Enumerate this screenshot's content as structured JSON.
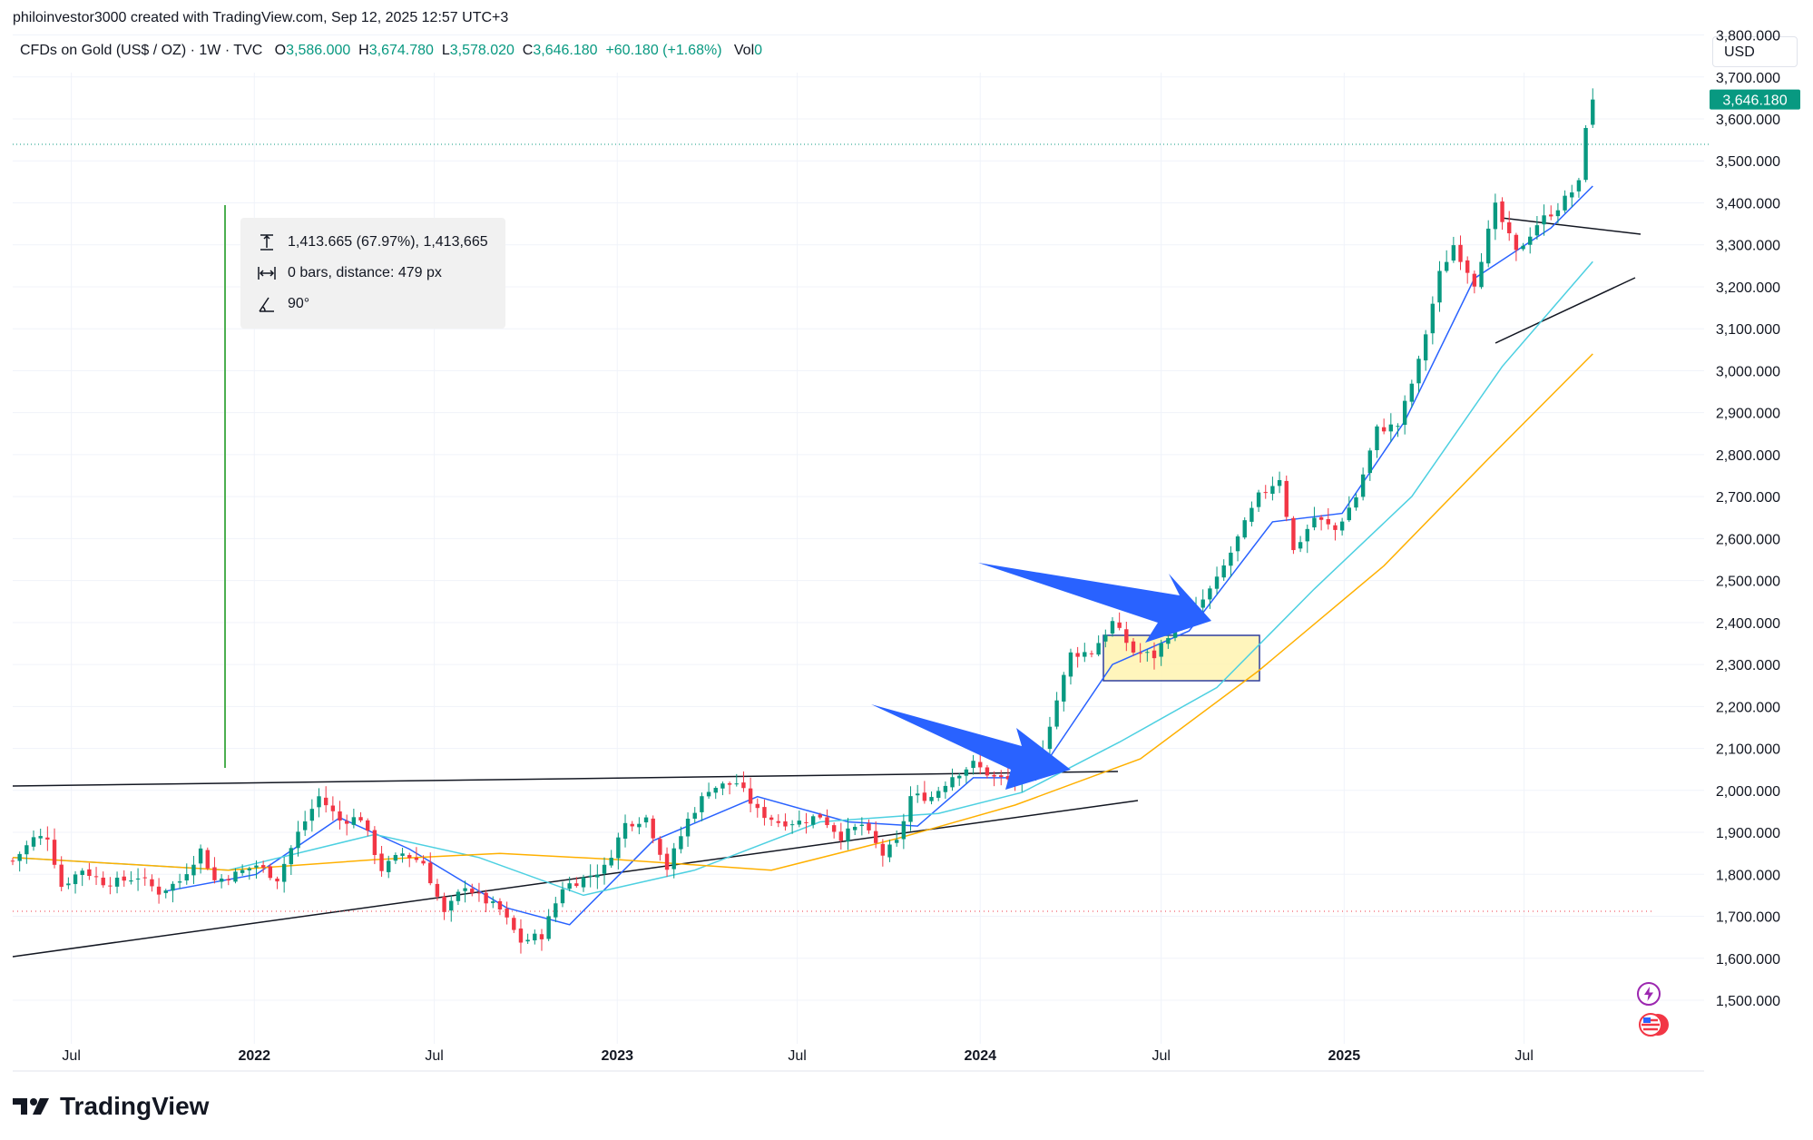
{
  "header": {
    "attribution": "philoinvestor3000 created with TradingView.com, Sep 12, 2025 12:57 UTC+3"
  },
  "symbol_bar": {
    "name": "CFDs on Gold (US$ / OZ) · 1W · TVC",
    "o_label": "O",
    "o_value": "3,586.000",
    "h_label": "H",
    "h_value": "3,674.780",
    "l_label": "L",
    "l_value": "3,578.020",
    "c_label": "C",
    "c_value": "3,646.180",
    "change": "+60.180 (+1.68%)",
    "vol_label": "Vol",
    "vol_value": "0"
  },
  "currency_button": "USD",
  "measure_tooltip": {
    "row1": "1,413.665 (67.97%), 1,413,665",
    "row2": "0 bars, distance: 479 px",
    "row3": "90°",
    "icon1": "price-range-icon",
    "icon2": "bar-range-icon",
    "icon3": "angle-icon"
  },
  "last_price_label": "3,646.180",
  "footer": {
    "brand": "TradingView",
    "logo_icon": "tradingview-logo-icon"
  },
  "event_icons": {
    "first": "lightning-icon",
    "second": "us-flag-icon"
  },
  "colors": {
    "up": "#089981",
    "down": "#f23645",
    "ma_fast": "#2962ff",
    "ma_mid": "#4dd0e1",
    "ma_slow": "#ffb000",
    "arrow": "#2962ff",
    "measure_line": "#4caf50",
    "box_fill": "#fff3b0",
    "box_border": "#2f3e9e"
  },
  "chart_data": {
    "type": "candlestick",
    "title": "",
    "xlabel": "",
    "ylabel": "",
    "ylim": [
      1400,
      3900
    ],
    "x_range": [
      "2021-05-03",
      "2025-12-29"
    ],
    "y_ticks": [
      {
        "value": 1500,
        "label": "1,500.000"
      },
      {
        "value": 1600,
        "label": "1,600.000"
      },
      {
        "value": 1700,
        "label": "1,700.000"
      },
      {
        "value": 1800,
        "label": "1,800.000"
      },
      {
        "value": 1900,
        "label": "1,900.000"
      },
      {
        "value": 2000,
        "label": "2,000.000"
      },
      {
        "value": 2100,
        "label": "2,100.000"
      },
      {
        "value": 2200,
        "label": "2,200.000"
      },
      {
        "value": 2300,
        "label": "2,300.000"
      },
      {
        "value": 2400,
        "label": "2,400.000"
      },
      {
        "value": 2500,
        "label": "2,500.000"
      },
      {
        "value": 2600,
        "label": "2,600.000"
      },
      {
        "value": 2700,
        "label": "2,700.000"
      },
      {
        "value": 2800,
        "label": "2,800.000"
      },
      {
        "value": 2900,
        "label": "2,900.000"
      },
      {
        "value": 3000,
        "label": "3,000.000"
      },
      {
        "value": 3100,
        "label": "3,100.000"
      },
      {
        "value": 3200,
        "label": "3,200.000"
      },
      {
        "value": 3300,
        "label": "3,300.000"
      },
      {
        "value": 3400,
        "label": "3,400.000"
      },
      {
        "value": 3500,
        "label": "3,500.000"
      },
      {
        "value": 3600,
        "label": "3,600.000"
      },
      {
        "value": 3700,
        "label": "3,700.000"
      },
      {
        "value": 3800,
        "label": "3,800.000"
      }
    ],
    "x_ticks": [
      {
        "date": "2021-07-01",
        "label": "Jul",
        "bold": false
      },
      {
        "date": "2022-01-01",
        "label": "2022",
        "bold": true
      },
      {
        "date": "2022-07-01",
        "label": "Jul",
        "bold": false
      },
      {
        "date": "2023-01-01",
        "label": "2023",
        "bold": true
      },
      {
        "date": "2023-07-01",
        "label": "Jul",
        "bold": false
      },
      {
        "date": "2024-01-01",
        "label": "2024",
        "bold": true
      },
      {
        "date": "2024-07-01",
        "label": "Jul",
        "bold": false
      },
      {
        "date": "2025-01-01",
        "label": "2025",
        "bold": true
      },
      {
        "date": "2025-07-01",
        "label": "Jul",
        "bold": false
      }
    ],
    "last_price": 3646.18,
    "close_path": [
      [
        "2021-05-03",
        1832
      ],
      [
        "2021-05-24",
        1885
      ],
      [
        "2021-06-07",
        1890
      ],
      [
        "2021-06-21",
        1772
      ],
      [
        "2021-07-12",
        1812
      ],
      [
        "2021-08-02",
        1782
      ],
      [
        "2021-08-16",
        1782
      ],
      [
        "2021-09-06",
        1795
      ],
      [
        "2021-09-27",
        1758
      ],
      [
        "2021-10-18",
        1784
      ],
      [
        "2021-11-08",
        1858
      ],
      [
        "2021-11-22",
        1785
      ],
      [
        "2021-12-13",
        1800
      ],
      [
        "2022-01-03",
        1822
      ],
      [
        "2022-01-24",
        1790
      ],
      [
        "2022-02-14",
        1898
      ],
      [
        "2022-03-07",
        1985
      ],
      [
        "2022-03-28",
        1928
      ],
      [
        "2022-04-18",
        1935
      ],
      [
        "2022-05-09",
        1812
      ],
      [
        "2022-05-30",
        1850
      ],
      [
        "2022-06-20",
        1828
      ],
      [
        "2022-07-11",
        1705
      ],
      [
        "2022-08-01",
        1775
      ],
      [
        "2022-08-15",
        1746
      ],
      [
        "2022-09-05",
        1715
      ],
      [
        "2022-09-26",
        1640
      ],
      [
        "2022-10-17",
        1655
      ],
      [
        "2022-11-07",
        1770
      ],
      [
        "2022-11-28",
        1790
      ],
      [
        "2022-12-19",
        1815
      ],
      [
        "2023-01-09",
        1920
      ],
      [
        "2023-01-30",
        1935
      ],
      [
        "2023-02-20",
        1815
      ],
      [
        "2023-03-13",
        1930
      ],
      [
        "2023-04-03",
        2005
      ],
      [
        "2023-05-01",
        2018
      ],
      [
        "2023-05-22",
        1950
      ],
      [
        "2023-06-12",
        1925
      ],
      [
        "2023-07-03",
        1925
      ],
      [
        "2023-07-24",
        1940
      ],
      [
        "2023-08-14",
        1890
      ],
      [
        "2023-09-04",
        1918
      ],
      [
        "2023-09-25",
        1847
      ],
      [
        "2023-10-09",
        1875
      ],
      [
        "2023-10-23",
        1985
      ],
      [
        "2023-11-13",
        1985
      ],
      [
        "2023-12-04",
        2035
      ],
      [
        "2023-12-25",
        2063
      ],
      [
        "2024-01-15",
        2030
      ],
      [
        "2024-02-05",
        2022
      ],
      [
        "2024-02-26",
        2050
      ],
      [
        "2024-03-11",
        2160
      ],
      [
        "2024-04-01",
        2325
      ],
      [
        "2024-04-22",
        2330
      ],
      [
        "2024-05-13",
        2400
      ],
      [
        "2024-06-03",
        2330
      ],
      [
        "2024-06-24",
        2320
      ],
      [
        "2024-07-15",
        2400
      ],
      [
        "2024-08-05",
        2430
      ],
      [
        "2024-08-26",
        2500
      ],
      [
        "2024-09-16",
        2600
      ],
      [
        "2024-10-07",
        2700
      ],
      [
        "2024-10-28",
        2745
      ],
      [
        "2024-11-11",
        2570
      ],
      [
        "2024-12-02",
        2650
      ],
      [
        "2024-12-23",
        2620
      ],
      [
        "2025-01-13",
        2700
      ],
      [
        "2025-02-03",
        2860
      ],
      [
        "2025-02-24",
        2870
      ],
      [
        "2025-03-17",
        3020
      ],
      [
        "2025-04-07",
        3230
      ],
      [
        "2025-04-21",
        3300
      ],
      [
        "2025-05-12",
        3210
      ],
      [
        "2025-06-02",
        3390
      ],
      [
        "2025-06-23",
        3280
      ],
      [
        "2025-07-14",
        3350
      ],
      [
        "2025-08-04",
        3390
      ],
      [
        "2025-08-25",
        3445
      ],
      [
        "2025-09-01",
        3586
      ],
      [
        "2025-09-08",
        3646.18
      ]
    ],
    "series": [
      {
        "name": "",
        "kind": "ma",
        "color": "#2962ff",
        "points": [
          [
            "2021-10-04",
            1760
          ],
          [
            "2022-01-03",
            1800
          ],
          [
            "2022-03-28",
            1935
          ],
          [
            "2022-06-06",
            1860
          ],
          [
            "2022-09-12",
            1720
          ],
          [
            "2022-11-14",
            1680
          ],
          [
            "2023-02-06",
            1880
          ],
          [
            "2023-05-22",
            1985
          ],
          [
            "2023-08-21",
            1925
          ],
          [
            "2023-10-30",
            1915
          ],
          [
            "2023-12-25",
            2030
          ],
          [
            "2024-02-26",
            2030
          ],
          [
            "2024-05-13",
            2300
          ],
          [
            "2024-07-29",
            2380
          ],
          [
            "2024-10-21",
            2640
          ],
          [
            "2024-12-30",
            2660
          ],
          [
            "2025-03-03",
            2880
          ],
          [
            "2025-05-12",
            3220
          ],
          [
            "2025-07-28",
            3340
          ],
          [
            "2025-09-08",
            3440
          ]
        ]
      },
      {
        "name": "",
        "kind": "ma",
        "color": "#4dd0e1",
        "points": [
          [
            "2021-05-03",
            1840
          ],
          [
            "2021-12-06",
            1810
          ],
          [
            "2022-05-02",
            1895
          ],
          [
            "2022-08-15",
            1840
          ],
          [
            "2022-11-28",
            1750
          ],
          [
            "2023-03-20",
            1810
          ],
          [
            "2023-07-24",
            1925
          ],
          [
            "2023-11-20",
            1945
          ],
          [
            "2024-02-12",
            1995
          ],
          [
            "2024-05-20",
            2115
          ],
          [
            "2024-08-26",
            2245
          ],
          [
            "2024-12-02",
            2480
          ],
          [
            "2025-03-10",
            2700
          ],
          [
            "2025-06-09",
            3010
          ],
          [
            "2025-09-08",
            3260
          ]
        ]
      },
      {
        "name": "",
        "kind": "ma",
        "color": "#ffb000",
        "points": [
          [
            "2021-05-03",
            1840
          ],
          [
            "2021-12-06",
            1810
          ],
          [
            "2022-05-02",
            1835
          ],
          [
            "2022-09-05",
            1850
          ],
          [
            "2023-01-02",
            1835
          ],
          [
            "2023-06-05",
            1810
          ],
          [
            "2023-10-09",
            1885
          ],
          [
            "2024-02-05",
            1965
          ],
          [
            "2024-06-10",
            2075
          ],
          [
            "2024-10-07",
            2285
          ],
          [
            "2025-02-10",
            2535
          ],
          [
            "2025-05-26",
            2790
          ],
          [
            "2025-09-08",
            3040
          ]
        ]
      }
    ]
  }
}
